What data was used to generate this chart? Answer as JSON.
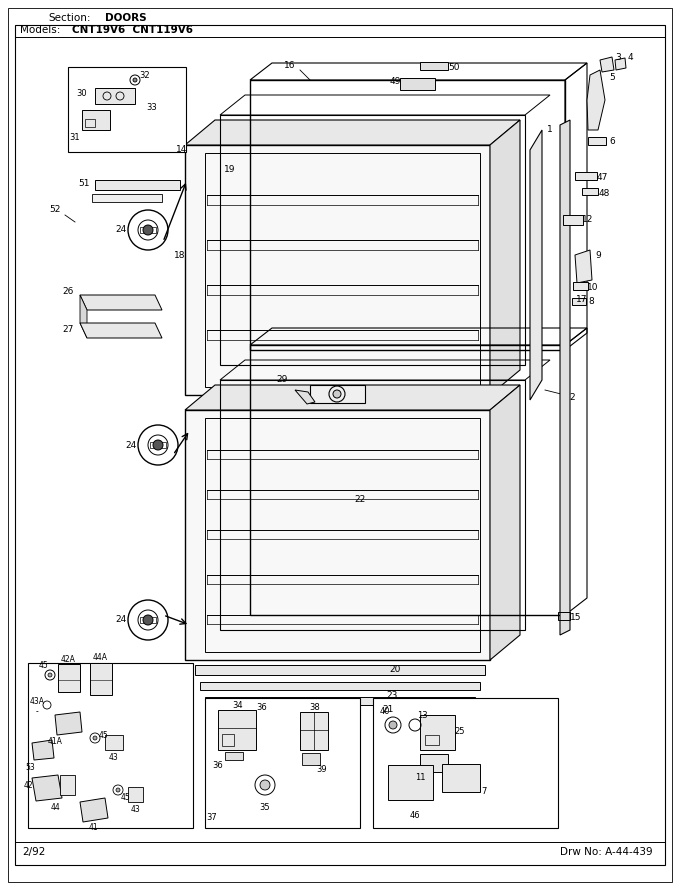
{
  "title_section": "Section:",
  "title_section_value": "DOORS",
  "title_models": "Models:",
  "title_models_value": "CNT19V6  CNT119V6",
  "footer_left": "2/92",
  "footer_right": "Drw No: A-44-439",
  "bg_color": "#ffffff",
  "border_color": "#000000",
  "fig_width": 6.8,
  "fig_height": 8.9
}
